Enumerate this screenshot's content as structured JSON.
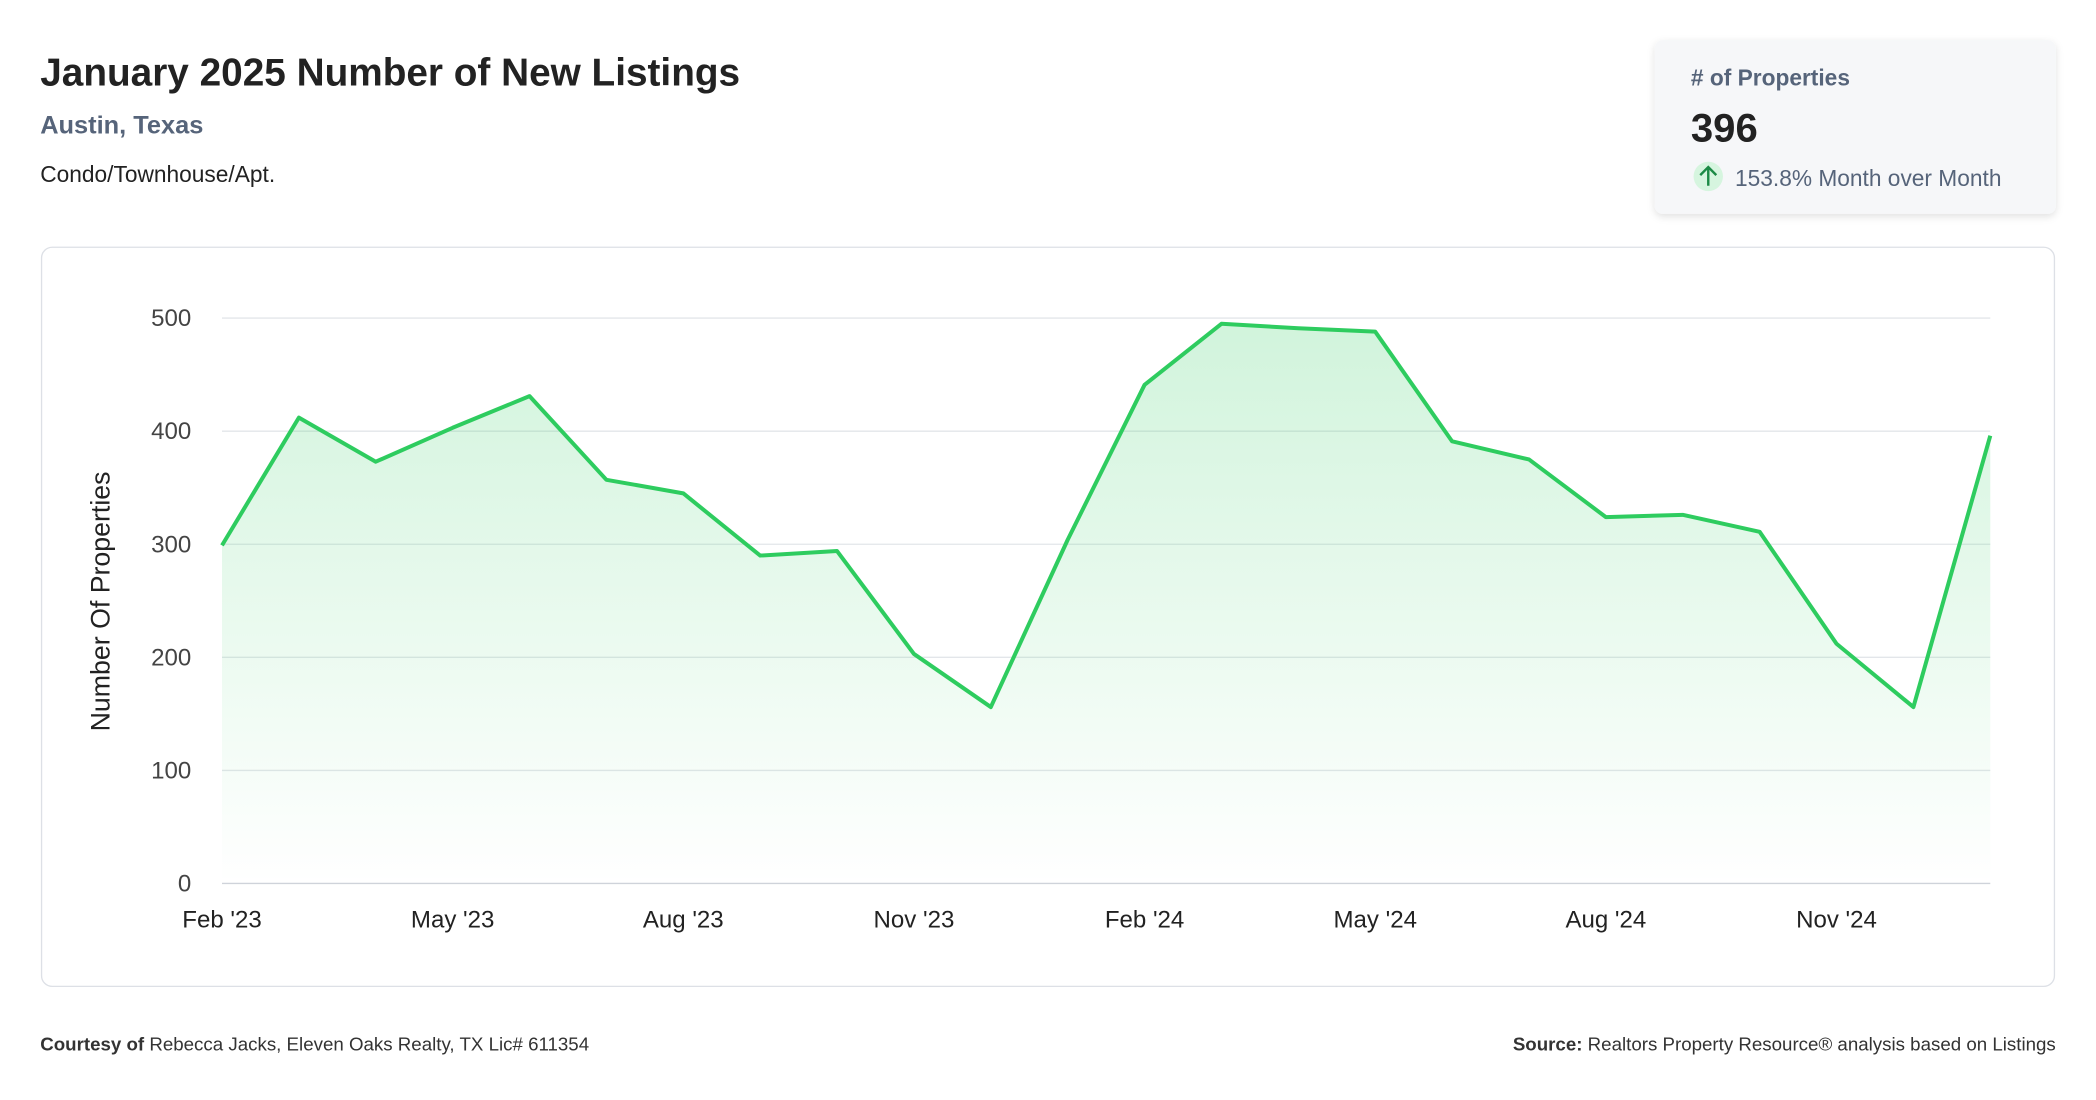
{
  "header": {
    "title": "January 2025 Number of New Listings",
    "location": "Austin, Texas",
    "property_type": "Condo/Townhouse/Apt."
  },
  "card": {
    "label": "# of Properties",
    "value": 396,
    "change": "153.8% Month over Month"
  },
  "chart_data": {
    "type": "line",
    "y_label": "Number Of Properties",
    "categories": [
      "Feb '23",
      null,
      null,
      "May '23",
      null,
      null,
      "Aug '23",
      null,
      null,
      "Nov '23",
      null,
      null,
      "Feb '24",
      null,
      null,
      "May '24",
      null,
      null,
      "Aug '24",
      null,
      null,
      "Nov '24",
      null,
      null
    ],
    "values": [
      299,
      412,
      373,
      403,
      431,
      357,
      345,
      290,
      294,
      203,
      156,
      304,
      441,
      495,
      491,
      488,
      391,
      375,
      324,
      326,
      311,
      212,
      156,
      396
    ],
    "color": "#2ecc5f",
    "ylim": [
      0,
      500
    ],
    "yticks": [
      0,
      100,
      200,
      300,
      400,
      500
    ],
    "grid": true
  },
  "footer": {
    "courtesy_label": "Courtesy of",
    "courtesy_text": "Rebecca Jacks, Eleven Oaks Realty, TX Lic# 611354",
    "source_label": "Source:",
    "source_text": "Realtors Property Resource® analysis based on Listings"
  }
}
